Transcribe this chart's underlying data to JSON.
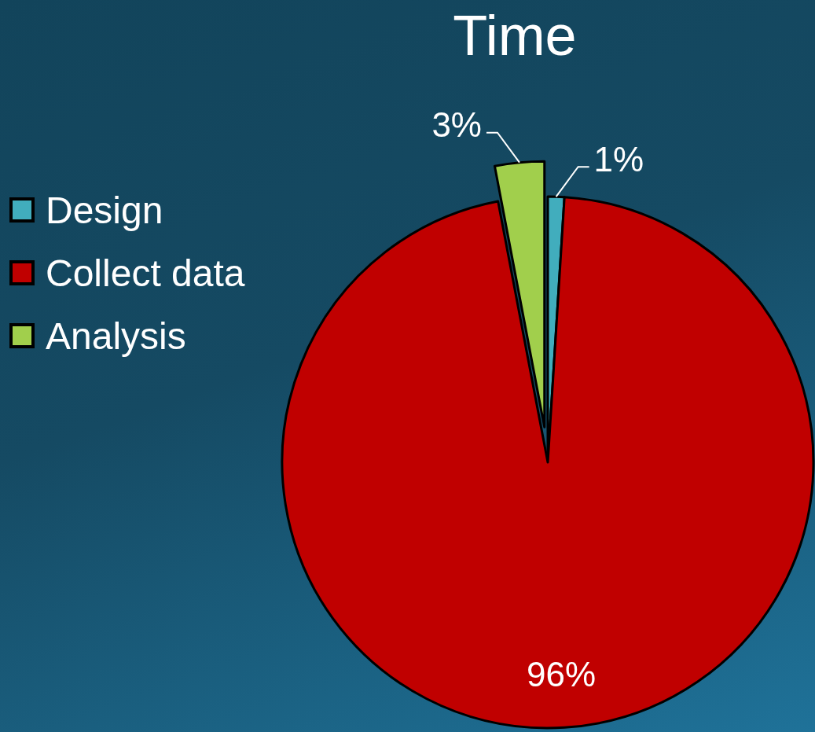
{
  "chart_data": {
    "type": "pie",
    "title": "Time",
    "categories": [
      "Design",
      "Collect data",
      "Analysis"
    ],
    "values": [
      1,
      96,
      3
    ],
    "value_labels": [
      "1%",
      "96%",
      "3%"
    ],
    "colors": [
      "#41adbd",
      "#c00000",
      "#a1cf4c"
    ],
    "legend": "left"
  }
}
